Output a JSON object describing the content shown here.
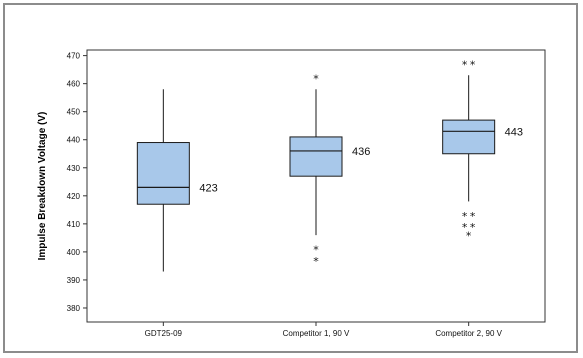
{
  "colors": {
    "box_fill": "#a8c8ea",
    "box_stroke": "#1a1a1a",
    "axis": "#333333"
  },
  "chart_data": {
    "type": "box",
    "title": "",
    "xlabel": "",
    "ylabel": "Impulse Breakdown Voltage (V)",
    "ylim": [
      375,
      472
    ],
    "yticks": [
      380,
      390,
      400,
      410,
      420,
      430,
      440,
      450,
      460,
      470
    ],
    "categories": [
      "GDT25-09",
      "Competitor 1, 90 V",
      "Competitor 2, 90 V"
    ],
    "boxes": [
      {
        "category": "GDT25-09",
        "whisker_low": 393,
        "q1": 417,
        "median": 423,
        "q3": 439,
        "whisker_high": 458,
        "median_label": "423",
        "outliers": []
      },
      {
        "category": "Competitor 1, 90 V",
        "whisker_low": 406,
        "q1": 427,
        "median": 436,
        "q3": 441,
        "whisker_high": 458,
        "median_label": "436",
        "outliers": [
          462,
          401,
          397
        ]
      },
      {
        "category": "Competitor 2, 90 V",
        "whisker_low": 418,
        "q1": 435,
        "median": 443,
        "q3": 447,
        "whisker_high": 463,
        "median_label": "443",
        "outliers": [
          467,
          467,
          413,
          413,
          409,
          409,
          406
        ]
      }
    ]
  }
}
